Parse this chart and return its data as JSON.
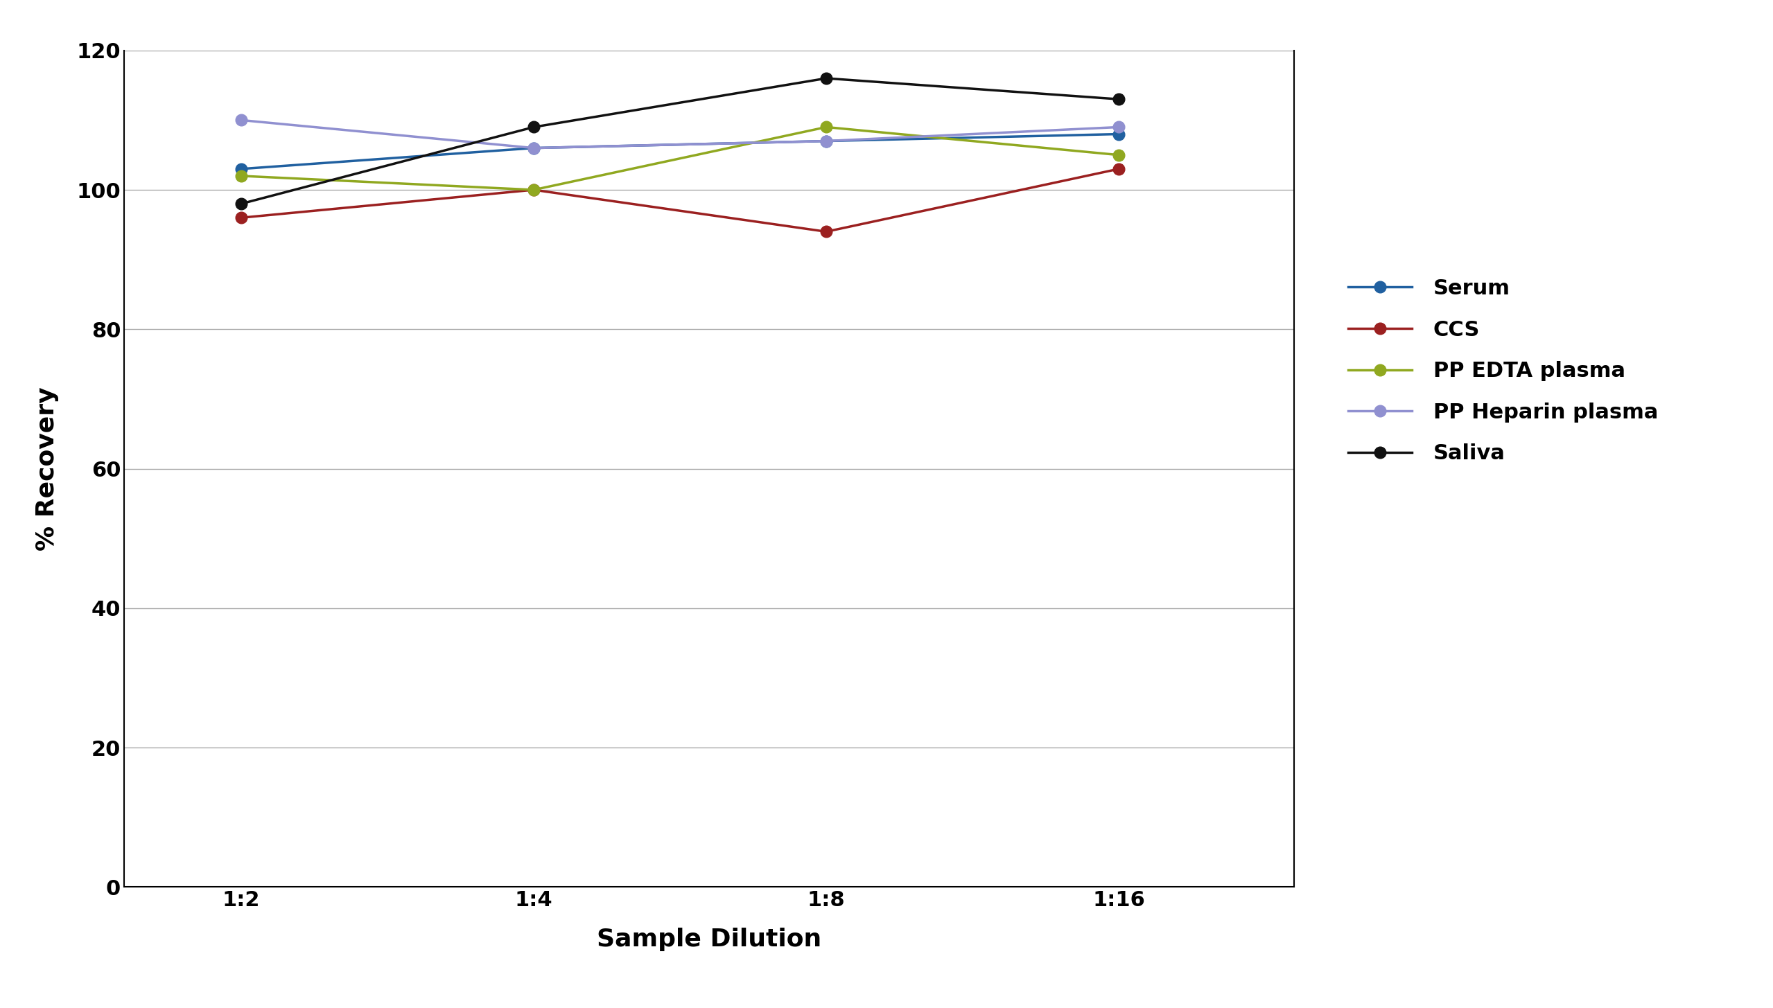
{
  "xlabel": "Sample Dilution",
  "ylabel": "% Recovery",
  "x_labels": [
    "1:2",
    "1:4",
    "1:8",
    "1:16"
  ],
  "x_values": [
    0,
    1,
    2,
    3
  ],
  "ylim": [
    0,
    120
  ],
  "yticks": [
    0,
    20,
    40,
    60,
    80,
    100,
    120
  ],
  "series": [
    {
      "name": "Serum",
      "color": "#2060a0",
      "values": [
        103,
        106,
        107,
        108
      ]
    },
    {
      "name": "CCS",
      "color": "#9b2020",
      "values": [
        96,
        100,
        94,
        103
      ]
    },
    {
      "name": "PP EDTA plasma",
      "color": "#90a820",
      "values": [
        102,
        100,
        109,
        105
      ]
    },
    {
      "name": "PP Heparin plasma",
      "color": "#9090d0",
      "values": [
        110,
        106,
        107,
        109
      ]
    },
    {
      "name": "Saliva",
      "color": "#111111",
      "values": [
        98,
        109,
        116,
        113
      ]
    }
  ],
  "grid_color": "#aaaaaa",
  "grid_linewidth": 1.0,
  "line_linewidth": 2.5,
  "marker_size": 12,
  "legend_fontsize": 22,
  "axis_label_fontsize": 26,
  "tick_label_fontsize": 22,
  "background_color": "#ffffff",
  "xlim_left": -0.4,
  "xlim_right": 3.6
}
